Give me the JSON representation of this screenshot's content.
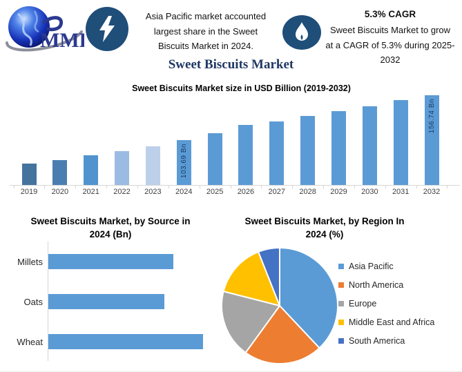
{
  "header": {
    "logo": {
      "text": "MMR"
    },
    "accent_color": "#1F4E79",
    "highlight_left": {
      "icon": "lightning",
      "lines": [
        "Asia Pacific market accounted",
        "largest share in the Sweet",
        "Biscuits Market in 2024."
      ]
    },
    "highlight_right": {
      "icon": "flame",
      "title": "5.3% CAGR",
      "lines": [
        "Sweet Biscuits Market to grow",
        "at a CAGR of 5.3% during 2025-",
        "2032"
      ]
    }
  },
  "main_title": "Sweet Biscuits Market",
  "chart_data": [
    {
      "type": "bar",
      "title": "Sweet Biscuits Market size in USD Billion (2019-2032)",
      "ylabel": "USD Billion",
      "categories": [
        "2019",
        "2020",
        "2021",
        "2022",
        "2023",
        "2024",
        "2025",
        "2026",
        "2027",
        "2028",
        "2029",
        "2030",
        "2031",
        "2032"
      ],
      "values": [
        76.4,
        80.5,
        86.1,
        91.0,
        96.7,
        103.69,
        112.1,
        121.8,
        125.9,
        132.4,
        138.1,
        143.7,
        151.1,
        156.74
      ],
      "labeled_points": {
        "2024": "103.69 Bn",
        "2032": "156.74 Bn"
      },
      "bar_colors": [
        "#44739E",
        "#4A7EB0",
        "#5093CE",
        "#9BBBE2",
        "#BDD0EA",
        "#5B9BD5",
        "#5B9BD5",
        "#5B9BD5",
        "#5B9BD5",
        "#5B9BD5",
        "#5B9BD5",
        "#5B9BD5",
        "#5B9BD5",
        "#5B9BD5"
      ]
    },
    {
      "type": "bar",
      "orientation": "horizontal",
      "title_lines": [
        "Sweet Biscuits Market, by Source in",
        "2024 (Bn)"
      ],
      "categories": [
        "Millets",
        "Oats",
        "Wheat"
      ],
      "values": [
        0.81,
        0.75,
        1.0
      ],
      "bar_color": "#5B9BD5"
    },
    {
      "type": "pie",
      "title_lines": [
        "Sweet Biscuits Market, by Region In",
        "2024 (%)"
      ],
      "labels": [
        "Asia Pacific",
        "North America",
        "Europe",
        "Middle East and Africa",
        "South America"
      ],
      "values": [
        38,
        22,
        19,
        15,
        6
      ],
      "colors": [
        "#5B9BD5",
        "#ED7D31",
        "#A5A5A5",
        "#FFC000",
        "#4472C4"
      ],
      "legend_position": "right"
    }
  ]
}
